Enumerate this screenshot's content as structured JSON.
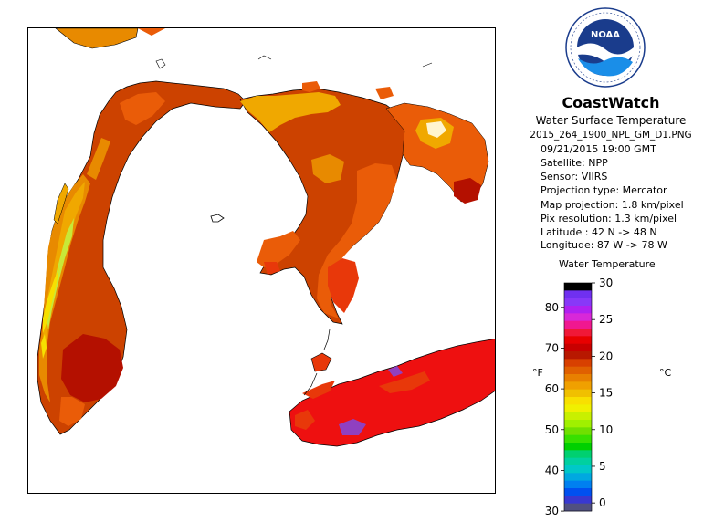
{
  "header": {
    "logo_text": "NOAA",
    "logo_ring_text": "NATIONAL OCEANIC AND ATMOSPHERIC ADMINISTRATION · U.S. DEPARTMENT OF COMMERCE",
    "title": "CoastWatch",
    "subtitle": "Water Surface Temperature",
    "filename": "2015_264_1900_NPL_GM_D1.PNG"
  },
  "metadata": {
    "datetime": "09/21/2015   19:00 GMT",
    "satellite": "Satellite: NPP",
    "sensor": "Sensor: VIIRS",
    "projection_type": "Projection type:  Mercator",
    "map_projection": "Map projection: 1.8 km/pixel",
    "pix_resolution": "Pix resolution: 1.3 km/pixel",
    "latitude": "Latitude : 42 N -> 48 N",
    "longitude": "Longitude: 87 W -> 78 W"
  },
  "legend": {
    "title": "Water Temperature",
    "unit_f": "°F",
    "unit_c": "°C",
    "f_ticks": [
      "80",
      "70",
      "60",
      "50",
      "40",
      "30"
    ],
    "c_ticks": [
      "30",
      "25",
      "20",
      "15",
      "10",
      "5",
      "0"
    ],
    "colors": [
      "#000000",
      "#7030f0",
      "#8838f8",
      "#b020f0",
      "#d828d8",
      "#f01890",
      "#f01838",
      "#e80000",
      "#c80000",
      "#b81800",
      "#d84000",
      "#e06000",
      "#e88000",
      "#f0a000",
      "#f0c000",
      "#f8e000",
      "#f0f000",
      "#c8f000",
      "#a0f000",
      "#70e000",
      "#38e000",
      "#00d000",
      "#00d070",
      "#00d0a0",
      "#00c8c8",
      "#00a8e0",
      "#0080f0",
      "#0050f0",
      "#3838d0",
      "#505080"
    ]
  },
  "map": {
    "background": "#ffffff",
    "colors": {
      "deep_red": "#b41000",
      "red": "#ee1010",
      "red_orange": "#e8380a",
      "orange_dark": "#cc4200",
      "orange": "#ea5c08",
      "amber": "#e88a00",
      "gold": "#f0a800",
      "yellow": "#f6e000",
      "lime": "#c8e838",
      "purple": "#9040c0"
    }
  }
}
